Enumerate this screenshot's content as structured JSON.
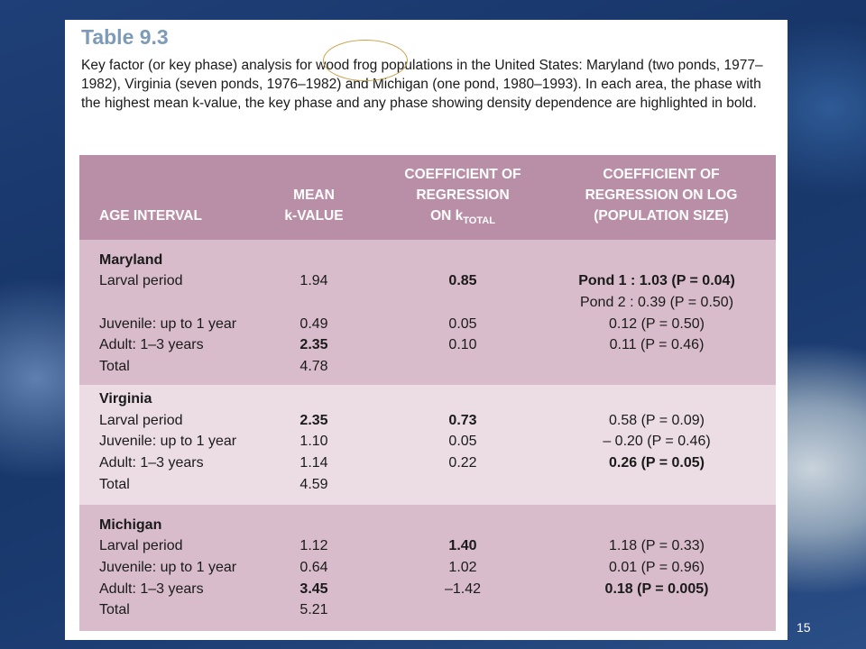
{
  "slide": {
    "number": "15"
  },
  "table": {
    "title": "Table 9.3",
    "caption": "Key factor (or key phase) analysis for wood frog populations in the United States: Maryland (two ponds, 1977–1982), Virginia (seven ponds, 1976–1982) and Michigan (one pond, 1980–1993). In each area, the phase with the highest mean k-value, the key phase and any phase showing density dependence are highlighted in bold.",
    "headers": {
      "age_interval": "AGE INTERVAL",
      "mean_k_line1": "MEAN",
      "mean_k_line2": "k-VALUE",
      "coef_total_line1": "COEFFICIENT OF",
      "coef_total_line2": "REGRESSION",
      "coef_total_line3": "ON k",
      "coef_total_sub": "TOTAL",
      "coef_log_line1": "COEFFICIENT OF",
      "coef_log_line2": "REGRESSION ON LOG",
      "coef_log_line3": "(POPULATION SIZE)"
    },
    "maryland": {
      "name": "Maryland",
      "rows": [
        {
          "interval": "Larval period",
          "mean": "1.94",
          "coef_total": "0.85",
          "coef_log": "Pond 1 : 1.03 (P = 0.04)"
        },
        {
          "interval": "",
          "mean": "",
          "coef_total": "",
          "coef_log": "Pond 2 : 0.39 (P = 0.50)"
        },
        {
          "interval": "Juvenile: up to 1 year",
          "mean": "0.49",
          "coef_total": "0.05",
          "coef_log": "0.12 (P = 0.50)"
        },
        {
          "interval": "Adult: 1–3 years",
          "mean": "2.35",
          "coef_total": "0.10",
          "coef_log": "0.11 (P = 0.46)"
        },
        {
          "interval": "Total",
          "mean": "4.78",
          "coef_total": "",
          "coef_log": ""
        }
      ]
    },
    "virginia": {
      "name": "Virginia",
      "rows": [
        {
          "interval": "Larval period",
          "mean": "2.35",
          "coef_total": "0.73",
          "coef_log": "0.58 (P = 0.09)"
        },
        {
          "interval": "Juvenile: up to 1 year",
          "mean": "1.10",
          "coef_total": "0.05",
          "coef_log": "– 0.20 (P = 0.46)"
        },
        {
          "interval": "Adult: 1–3 years",
          "mean": "1.14",
          "coef_total": "0.22",
          "coef_log": "0.26 (P = 0.05)"
        },
        {
          "interval": "Total",
          "mean": "4.59",
          "coef_total": "",
          "coef_log": ""
        }
      ]
    },
    "michigan": {
      "name": "Michigan",
      "rows": [
        {
          "interval": "Larval period",
          "mean": "1.12",
          "coef_total": "1.40",
          "coef_log": "1.18 (P = 0.33)"
        },
        {
          "interval": "Juvenile: up to 1 year",
          "mean": "0.64",
          "coef_total": "1.02",
          "coef_log": "0.01 (P = 0.96)"
        },
        {
          "interval": "Adult: 1–3 years",
          "mean": "3.45",
          "coef_total": "–1.42",
          "coef_log": "0.18 (P = 0.005)"
        },
        {
          "interval": "Total",
          "mean": "5.21",
          "coef_total": "",
          "coef_log": ""
        }
      ]
    }
  }
}
